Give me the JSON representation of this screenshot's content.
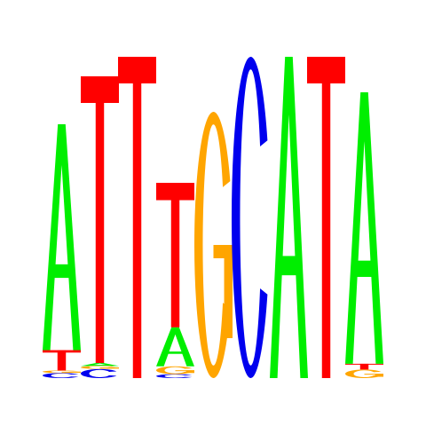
{
  "sequence_logo": {
    "colors": {
      "A": "#00ee00",
      "C": "#0000ee",
      "G": "#ffa500",
      "T": "#ff0000"
    },
    "positions": [
      {
        "index": 1,
        "stack": [
          {
            "letter": "C",
            "weight": 0.02
          },
          {
            "letter": "G",
            "weight": 0.01
          },
          {
            "letter": "T",
            "weight": 0.08
          },
          {
            "letter": "A",
            "weight": 0.89
          }
        ]
      },
      {
        "index": 2,
        "stack": [
          {
            "letter": "C",
            "weight": 0.03
          },
          {
            "letter": "G",
            "weight": 0.01
          },
          {
            "letter": "A",
            "weight": 0.01
          },
          {
            "letter": "T",
            "weight": 0.95
          }
        ]
      },
      {
        "index": 3,
        "stack": [
          {
            "letter": "T",
            "weight": 1.0
          }
        ]
      },
      {
        "index": 4,
        "stack": [
          {
            "letter": "C",
            "weight": 0.02
          },
          {
            "letter": "G",
            "weight": 0.04
          },
          {
            "letter": "A",
            "weight": 0.2
          },
          {
            "letter": "T",
            "weight": 0.74
          }
        ]
      },
      {
        "index": 5,
        "stack": [
          {
            "letter": "G",
            "weight": 1.0
          }
        ]
      },
      {
        "index": 6,
        "stack": [
          {
            "letter": "C",
            "weight": 1.0
          }
        ]
      },
      {
        "index": 7,
        "stack": [
          {
            "letter": "A",
            "weight": 1.0
          }
        ]
      },
      {
        "index": 8,
        "stack": [
          {
            "letter": "T",
            "weight": 1.0
          }
        ]
      },
      {
        "index": 9,
        "stack": [
          {
            "letter": "G",
            "weight": 0.03
          },
          {
            "letter": "T",
            "weight": 0.02
          },
          {
            "letter": "A",
            "weight": 0.95
          }
        ]
      }
    ]
  }
}
